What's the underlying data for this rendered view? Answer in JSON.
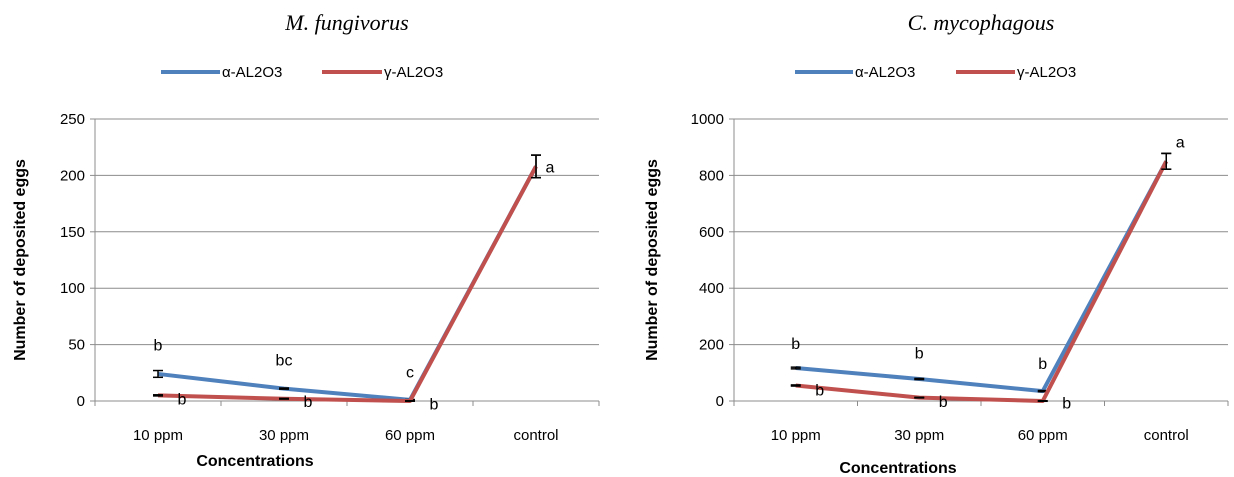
{
  "chart_data": [
    {
      "type": "line",
      "title": "M. fungivorus",
      "xlabel": "Concentrations",
      "ylabel": "Number of deposited eggs",
      "categories": [
        "10 ppm",
        "30 ppm",
        "60 ppm",
        "control"
      ],
      "ylim": [
        0,
        250
      ],
      "yticks": [
        0,
        50,
        100,
        150,
        200,
        250
      ],
      "grid": "horizontal",
      "legend": "top",
      "series": [
        {
          "name": "α-AL2O3",
          "color": "#4F81BD",
          "values": [
            24,
            11,
            1,
            208
          ],
          "errors": [
            3,
            0.5,
            0.3,
            10
          ]
        },
        {
          "name": "γ-AL2O3",
          "color": "#C0504D",
          "values": [
            5,
            2,
            0,
            208
          ],
          "errors": [
            0.5,
            0.3,
            0.2,
            10
          ]
        }
      ],
      "annotations": [
        {
          "category": 0,
          "value": 50,
          "text": "b"
        },
        {
          "category": 0,
          "value": 2,
          "text": "b"
        },
        {
          "category": 1,
          "value": 37,
          "text": "bc"
        },
        {
          "category": 1,
          "value": 0,
          "text": "b"
        },
        {
          "category": 2,
          "value": 26,
          "text": "c"
        },
        {
          "category": 2,
          "value": -2,
          "text": "b"
        },
        {
          "category": 3,
          "value": 208,
          "text": "a"
        }
      ]
    },
    {
      "type": "line",
      "title": "C. mycophagous",
      "xlabel": "Concentrations",
      "ylabel": "Number of deposited eggs",
      "categories": [
        "10 ppm",
        "30 ppm",
        "60 ppm",
        "control"
      ],
      "ylim": [
        0,
        1000
      ],
      "yticks": [
        0,
        200,
        400,
        600,
        800,
        1000
      ],
      "grid": "horizontal",
      "legend": "top",
      "series": [
        {
          "name": "α-AL2O3",
          "color": "#4F81BD",
          "values": [
            117,
            78,
            35,
            850
          ],
          "errors": [
            3,
            2,
            2,
            28
          ]
        },
        {
          "name": "γ-AL2O3",
          "color": "#C0504D",
          "values": [
            55,
            12,
            0,
            850
          ],
          "errors": [
            2,
            1,
            1,
            28
          ]
        }
      ],
      "annotations": [
        {
          "category": 0,
          "value": 205,
          "text": "b"
        },
        {
          "category": 0,
          "value": 40,
          "text": "b"
        },
        {
          "category": 1,
          "value": 172,
          "text": "b"
        },
        {
          "category": 1,
          "value": 0,
          "text": "b"
        },
        {
          "category": 2,
          "value": 135,
          "text": "b"
        },
        {
          "category": 2,
          "value": -5,
          "text": "b"
        },
        {
          "category": 3,
          "value": 920,
          "text": "a"
        }
      ]
    }
  ]
}
